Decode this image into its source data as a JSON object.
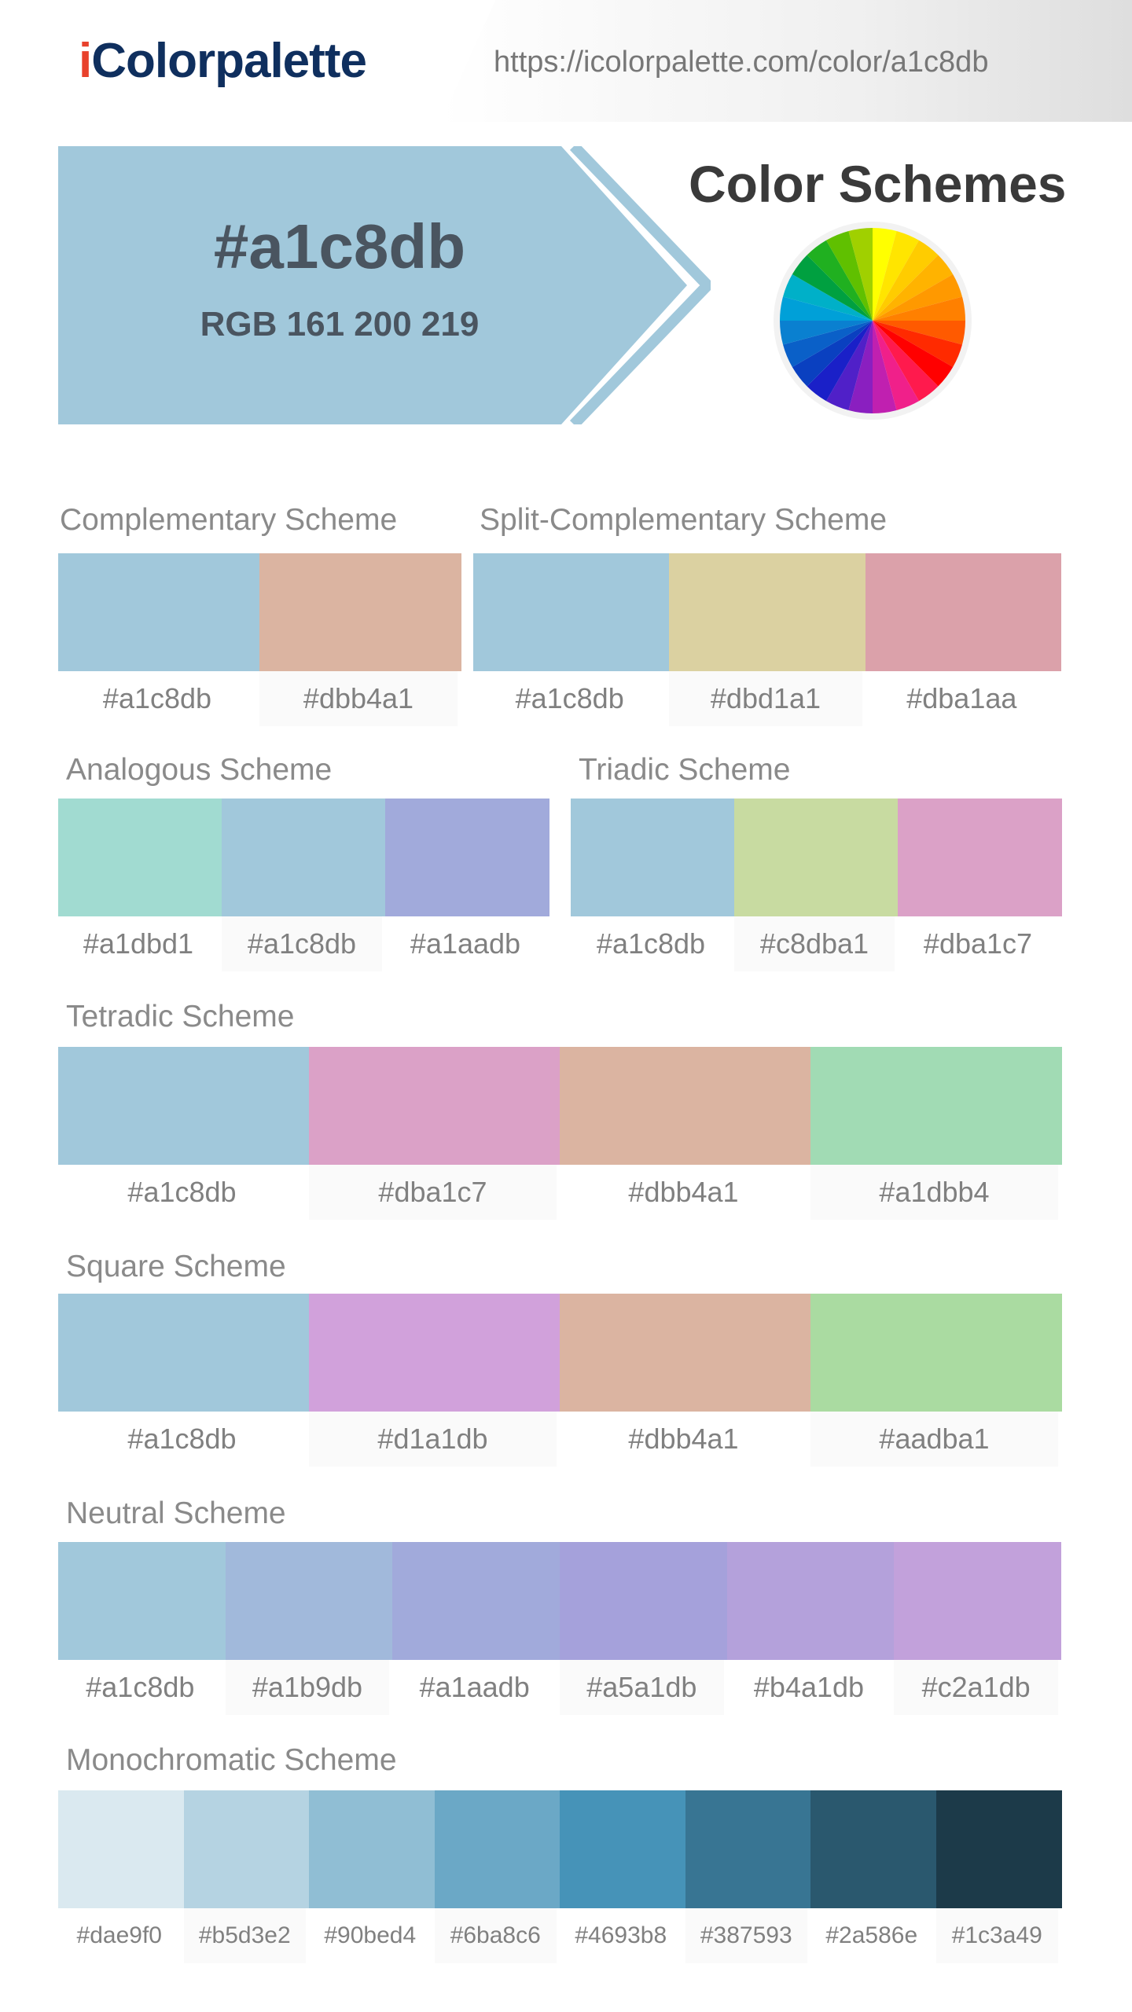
{
  "header": {
    "logo_i": "i",
    "logo_rest": "Colorpalette",
    "url": "https://icolorpalette.com/color/a1c8db"
  },
  "hero": {
    "hex": "#a1c8db",
    "rgb": "RGB 161 200 219",
    "color": "#a1c8db",
    "schemes_title": "Color Schemes",
    "wheel_icon": "color-wheel-icon"
  },
  "schemes": {
    "complementary": {
      "title": "Complementary Scheme",
      "swatches": [
        {
          "hex": "#a1c8db",
          "label": "#a1c8db"
        },
        {
          "hex": "#dbb4a1",
          "label": "#dbb4a1"
        }
      ]
    },
    "split_complementary": {
      "title": "Split-Complementary Scheme",
      "swatches": [
        {
          "hex": "#a1c8db",
          "label": "#a1c8db"
        },
        {
          "hex": "#dbd1a1",
          "label": "#dbd1a1"
        },
        {
          "hex": "#dba1aa",
          "label": "#dba1aa"
        }
      ]
    },
    "analogous": {
      "title": "Analogous Scheme",
      "swatches": [
        {
          "hex": "#a1dbd1",
          "label": "#a1dbd1"
        },
        {
          "hex": "#a1c8db",
          "label": "#a1c8db"
        },
        {
          "hex": "#a1aadb",
          "label": "#a1aadb"
        }
      ]
    },
    "triadic": {
      "title": "Triadic Scheme",
      "swatches": [
        {
          "hex": "#a1c8db",
          "label": "#a1c8db"
        },
        {
          "hex": "#c8dba1",
          "label": "#c8dba1"
        },
        {
          "hex": "#dba1c7",
          "label": "#dba1c7"
        }
      ]
    },
    "tetradic": {
      "title": "Tetradic Scheme",
      "swatches": [
        {
          "hex": "#a1c8db",
          "label": "#a1c8db"
        },
        {
          "hex": "#dba1c7",
          "label": "#dba1c7"
        },
        {
          "hex": "#dbb4a1",
          "label": "#dbb4a1"
        },
        {
          "hex": "#a1dbb4",
          "label": "#a1dbb4"
        }
      ]
    },
    "square": {
      "title": "Square Scheme",
      "swatches": [
        {
          "hex": "#a1c8db",
          "label": "#a1c8db"
        },
        {
          "hex": "#d1a1db",
          "label": "#d1a1db"
        },
        {
          "hex": "#dbb4a1",
          "label": "#dbb4a1"
        },
        {
          "hex": "#aadba1",
          "label": "#aadba1"
        }
      ]
    },
    "neutral": {
      "title": "Neutral Scheme",
      "swatches": [
        {
          "hex": "#a1c8db",
          "label": "#a1c8db"
        },
        {
          "hex": "#a1b9db",
          "label": "#a1b9db"
        },
        {
          "hex": "#a1aadb",
          "label": "#a1aadb"
        },
        {
          "hex": "#a5a1db",
          "label": "#a5a1db"
        },
        {
          "hex": "#b4a1db",
          "label": "#b4a1db"
        },
        {
          "hex": "#c2a1db",
          "label": "#c2a1db"
        }
      ]
    },
    "monochromatic": {
      "title": "Monochromatic Scheme",
      "swatches": [
        {
          "hex": "#dae9f0",
          "label": "#dae9f0"
        },
        {
          "hex": "#b5d3e2",
          "label": "#b5d3e2"
        },
        {
          "hex": "#90bed4",
          "label": "#90bed4"
        },
        {
          "hex": "#6ba8c6",
          "label": "#6ba8c6"
        },
        {
          "hex": "#4693b8",
          "label": "#4693b8"
        },
        {
          "hex": "#387593",
          "label": "#387593"
        },
        {
          "hex": "#2a586e",
          "label": "#2a586e"
        },
        {
          "hex": "#1c3a49",
          "label": "#1c3a49"
        }
      ]
    }
  }
}
